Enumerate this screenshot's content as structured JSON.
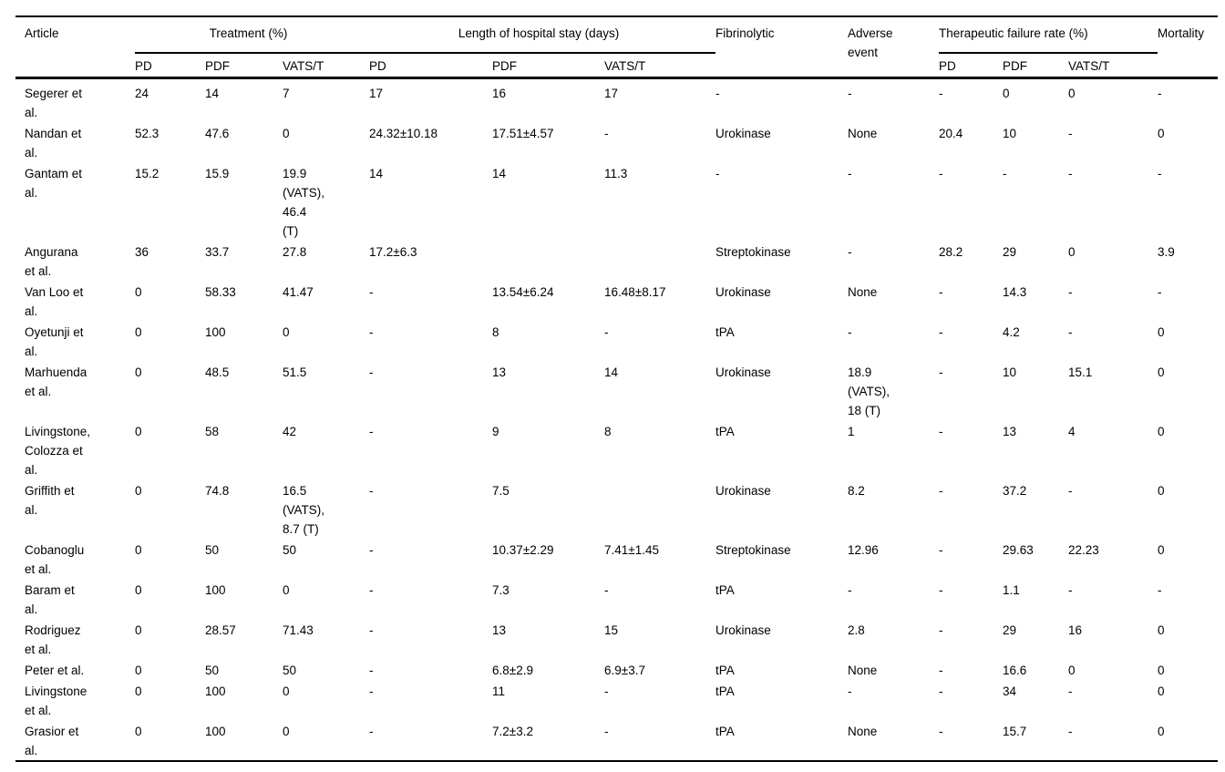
{
  "table": {
    "title_semantic": "comparative-outcomes-table",
    "header": {
      "article": "Article",
      "treatment": "Treatment (%)",
      "stay": "Length of hospital stay (days)",
      "fibrinolytic": "Fibrinolytic",
      "adverse": "Adverse event",
      "tfr": "Therapeutic failure rate (%)",
      "mortality": "Mortality",
      "sub": {
        "pd": "PD",
        "pdf": "PDF",
        "vats": "VATS/T"
      }
    },
    "rows": [
      {
        "article": "Segerer et al.",
        "t_pd": "24",
        "t_pdf": "14",
        "t_vats": "7",
        "s_pd": "17",
        "s_pdf": "16",
        "s_vats": "17",
        "fibrinolytic": "-",
        "adverse": "-",
        "f_pd": "-",
        "f_pdf": "0",
        "f_vats": "0",
        "mortality": "-"
      },
      {
        "article": "Nandan et al.",
        "t_pd": "52.3",
        "t_pdf": "47.6",
        "t_vats": "0",
        "s_pd": "24.32±10.18",
        "s_pdf": "17.51±4.57",
        "s_vats": "-",
        "fibrinolytic": "Urokinase",
        "adverse": "None",
        "f_pd": "20.4",
        "f_pdf": "10",
        "f_vats": "-",
        "mortality": "0"
      },
      {
        "article": "Gantam et al.",
        "t_pd": "15.2",
        "t_pdf": "15.9",
        "t_vats": "19.9 (VATS), 46.4 (T)",
        "s_pd": "14",
        "s_pdf": "14",
        "s_vats": "11.3",
        "fibrinolytic": "-",
        "adverse": "-",
        "f_pd": "-",
        "f_pdf": "-",
        "f_vats": "-",
        "mortality": "-"
      },
      {
        "article": "Angurana et al.",
        "t_pd": "36",
        "t_pdf": "33.7",
        "t_vats": "27.8",
        "s_pd": "17.2±6.3",
        "s_pdf": "",
        "s_vats": "",
        "fibrinolytic": "Streptokinase",
        "adverse": "-",
        "f_pd": "28.2",
        "f_pdf": "29",
        "f_vats": "0",
        "mortality": "3.9"
      },
      {
        "article": "Van Loo et al.",
        "t_pd": "0",
        "t_pdf": "58.33",
        "t_vats": "41.47",
        "s_pd": "-",
        "s_pdf": "13.54±6.24",
        "s_vats": "16.48±8.17",
        "fibrinolytic": "Urokinase",
        "adverse": "None",
        "f_pd": "-",
        "f_pdf": "14.3",
        "f_vats": "-",
        "mortality": "-"
      },
      {
        "article": "Oyetunji et al.",
        "t_pd": "0",
        "t_pdf": "100",
        "t_vats": "0",
        "s_pd": "-",
        "s_pdf": "8",
        "s_vats": "-",
        "fibrinolytic": "tPA",
        "adverse": "-",
        "f_pd": "-",
        "f_pdf": "4.2",
        "f_vats": "-",
        "mortality": "0"
      },
      {
        "article": "Marhuenda et al.",
        "t_pd": "0",
        "t_pdf": "48.5",
        "t_vats": "51.5",
        "s_pd": "-",
        "s_pdf": "13",
        "s_vats": "14",
        "fibrinolytic": "Urokinase",
        "adverse": "18.9 (VATS), 18 (T)",
        "f_pd": "-",
        "f_pdf": "10",
        "f_vats": "15.1",
        "mortality": "0"
      },
      {
        "article": "Livingstone, Colozza et al.",
        "t_pd": "0",
        "t_pdf": "58",
        "t_vats": "42",
        "s_pd": "-",
        "s_pdf": "9",
        "s_vats": "8",
        "fibrinolytic": "tPA",
        "adverse": "1",
        "f_pd": "-",
        "f_pdf": "13",
        "f_vats": "4",
        "mortality": "0"
      },
      {
        "article": "Griffith et al.",
        "t_pd": "0",
        "t_pdf": "74.8",
        "t_vats": "16.5 (VATS), 8.7 (T)",
        "s_pd": "-",
        "s_pdf": "7.5",
        "s_vats": "",
        "fibrinolytic": "Urokinase",
        "adverse": "8.2",
        "f_pd": "-",
        "f_pdf": "37.2",
        "f_vats": "-",
        "mortality": "0"
      },
      {
        "article": "Cobanoglu et al.",
        "t_pd": "0",
        "t_pdf": "50",
        "t_vats": "50",
        "s_pd": "-",
        "s_pdf": "10.37±2.29",
        "s_vats": "7.41±1.45",
        "fibrinolytic": "Streptokinase",
        "adverse": "12.96",
        "f_pd": "-",
        "f_pdf": "29.63",
        "f_vats": "22.23",
        "mortality": "0"
      },
      {
        "article": "Baram et al.",
        "t_pd": "0",
        "t_pdf": "100",
        "t_vats": "0",
        "s_pd": "-",
        "s_pdf": "7.3",
        "s_vats": "-",
        "fibrinolytic": "tPA",
        "adverse": "-",
        "f_pd": "-",
        "f_pdf": "1.1",
        "f_vats": "-",
        "mortality": "-"
      },
      {
        "article": "Rodriguez et al.",
        "t_pd": "0",
        "t_pdf": "28.57",
        "t_vats": "71.43",
        "s_pd": "-",
        "s_pdf": "13",
        "s_vats": "15",
        "fibrinolytic": "Urokinase",
        "adverse": "2.8",
        "f_pd": "-",
        "f_pdf": "29",
        "f_vats": "16",
        "mortality": "0"
      },
      {
        "article": "Peter et al.",
        "t_pd": "0",
        "t_pdf": "50",
        "t_vats": "50",
        "s_pd": "-",
        "s_pdf": "6.8±2.9",
        "s_vats": "6.9±3.7",
        "fibrinolytic": "tPA",
        "adverse": "None",
        "f_pd": "-",
        "f_pdf": "16.6",
        "f_vats": "0",
        "mortality": "0"
      },
      {
        "article": "Livingstone et al.",
        "t_pd": "0",
        "t_pdf": "100",
        "t_vats": "0",
        "s_pd": "-",
        "s_pdf": "11",
        "s_vats": "-",
        "fibrinolytic": "tPA",
        "adverse": "-",
        "f_pd": "-",
        "f_pdf": "34",
        "f_vats": "-",
        "mortality": "0"
      },
      {
        "article": "Grasior et al.",
        "t_pd": "0",
        "t_pdf": "100",
        "t_vats": "0",
        "s_pd": "-",
        "s_pdf": "7.2±3.2",
        "s_vats": "-",
        "fibrinolytic": "tPA",
        "adverse": "None",
        "f_pd": "-",
        "f_pdf": "15.7",
        "f_vats": "-",
        "mortality": "0"
      }
    ]
  }
}
